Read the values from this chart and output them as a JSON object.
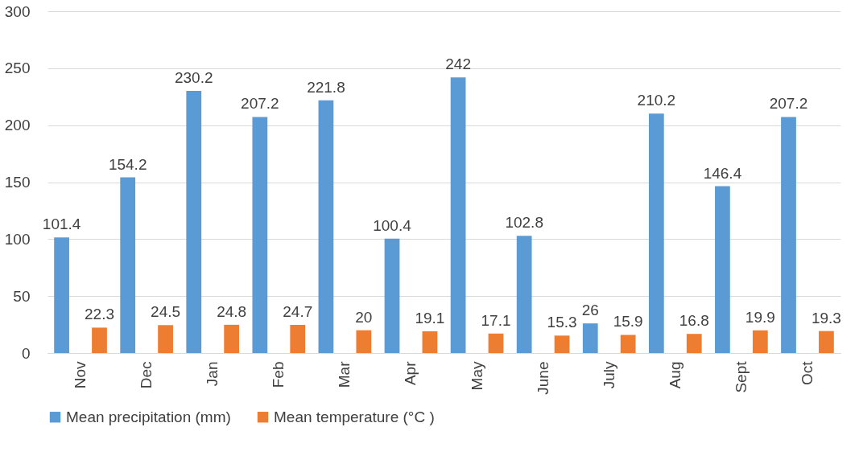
{
  "chart_data": {
    "type": "bar",
    "categories": [
      "Nov",
      "Dec",
      "Jan",
      "Feb",
      "Mar",
      "Apr",
      "May",
      "June",
      "July",
      "Aug",
      "Sept",
      "Oct"
    ],
    "series": [
      {
        "name": "Mean precipitation (mm)",
        "color": "#5b9bd5",
        "values": [
          101.4,
          154.2,
          230.2,
          207.2,
          221.8,
          100.4,
          242,
          102.8,
          26,
          210.2,
          146.4,
          207.2
        ]
      },
      {
        "name": "Mean temperature (°C )",
        "color": "#ed7d31",
        "values": [
          22.3,
          24.5,
          24.8,
          24.7,
          20,
          19.1,
          17.1,
          15.3,
          15.9,
          16.8,
          19.9,
          19.3
        ]
      }
    ],
    "ylim": [
      0,
      300
    ],
    "yticks": [
      0,
      50,
      100,
      150,
      200,
      250,
      300
    ],
    "grid": "y",
    "legend": "bottom",
    "data_labels": true
  }
}
